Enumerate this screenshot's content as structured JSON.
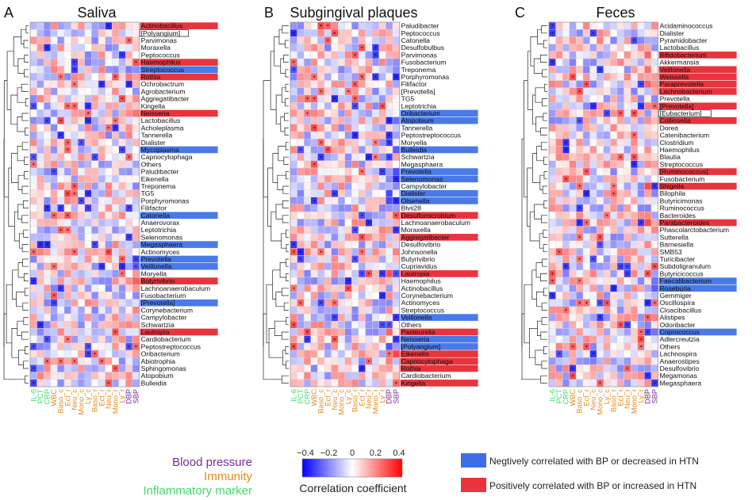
{
  "colors": {
    "negative": "#3b6ee6",
    "positive": "#e8343d",
    "neg_label_bg": "#4a7ae8",
    "pos_label_bg": "#e8343d",
    "bp_color": "#7a2a9a",
    "immunity_color": "#e08a1e",
    "inflam_color": "#3ed96b"
  },
  "columns": [
    {
      "label": "IL-6",
      "group": "inflam"
    },
    {
      "label": "PCT",
      "group": "inflam"
    },
    {
      "label": "CRP",
      "group": "inflam"
    },
    {
      "label": "WBC",
      "group": "immunity"
    },
    {
      "label": "Baso_c",
      "group": "immunity"
    },
    {
      "label": "Ect_r",
      "group": "immunity"
    },
    {
      "label": "Neu_c",
      "group": "immunity"
    },
    {
      "label": "Mono_c",
      "group": "immunity"
    },
    {
      "label": "Ly_c",
      "group": "immunity"
    },
    {
      "label": "Baso_r",
      "group": "immunity"
    },
    {
      "label": "Ect_r",
      "group": "immunity"
    },
    {
      "label": "Neu_r",
      "group": "immunity"
    },
    {
      "label": "Mono_r",
      "group": "immunity"
    },
    {
      "label": "Ly_r",
      "group": "immunity"
    },
    {
      "label": "DBP",
      "group": "bp"
    },
    {
      "label": "SBP",
      "group": "bp"
    }
  ],
  "chart_data": [
    {
      "type": "heatmap",
      "panel_letter": "A",
      "title": "Saliva",
      "rows": [
        {
          "name": "Actinobacillus",
          "mark": "pos"
        },
        {
          "name": "[Polyangium]",
          "mark": "box"
        },
        {
          "name": "Parvimonas",
          "mark": ""
        },
        {
          "name": "Moraxella",
          "mark": ""
        },
        {
          "name": "Peptococcus",
          "mark": ""
        },
        {
          "name": "Haemophilus",
          "mark": "pos"
        },
        {
          "name": "Streptococcus",
          "mark": "neg"
        },
        {
          "name": "Rothia",
          "mark": "pos"
        },
        {
          "name": "Ochrobactrum",
          "mark": ""
        },
        {
          "name": "Agrobacterium",
          "mark": ""
        },
        {
          "name": "Aggregatibacter",
          "mark": ""
        },
        {
          "name": "Kingella",
          "mark": ""
        },
        {
          "name": "Neisseria",
          "mark": "pos"
        },
        {
          "name": "Lactobacillus",
          "mark": ""
        },
        {
          "name": "Acholeplasma",
          "mark": ""
        },
        {
          "name": "Tannerella",
          "mark": ""
        },
        {
          "name": "Dialister",
          "mark": ""
        },
        {
          "name": "Mycoplasma",
          "mark": "neg"
        },
        {
          "name": "Capnocytophaga",
          "mark": ""
        },
        {
          "name": "Others",
          "mark": ""
        },
        {
          "name": "Paludibacter",
          "mark": ""
        },
        {
          "name": "Eikenella",
          "mark": ""
        },
        {
          "name": "Treponema",
          "mark": ""
        },
        {
          "name": "TG5",
          "mark": ""
        },
        {
          "name": "Porphyromonas",
          "mark": ""
        },
        {
          "name": "Filifactor",
          "mark": ""
        },
        {
          "name": "Catonella",
          "mark": "neg"
        },
        {
          "name": "Anaerovorax",
          "mark": ""
        },
        {
          "name": "Leptotrichia",
          "mark": ""
        },
        {
          "name": "Selenomonas",
          "mark": ""
        },
        {
          "name": "Megasphaera",
          "mark": "neg"
        },
        {
          "name": "Actinomyces",
          "mark": ""
        },
        {
          "name": "Prevotella",
          "mark": "neg"
        },
        {
          "name": "Veillonella",
          "mark": "neg"
        },
        {
          "name": "Moryella",
          "mark": ""
        },
        {
          "name": "Butyrivibrio",
          "mark": "pos"
        },
        {
          "name": "Lachnoanaerobaculum",
          "mark": ""
        },
        {
          "name": "Fusobacterium",
          "mark": ""
        },
        {
          "name": "[Prevotella]",
          "mark": "neg"
        },
        {
          "name": "Corynebacterium",
          "mark": ""
        },
        {
          "name": "Campylobacter",
          "mark": ""
        },
        {
          "name": "Schwartzia",
          "mark": ""
        },
        {
          "name": "Lautropia",
          "mark": "pos"
        },
        {
          "name": "Cardiobacterium",
          "mark": ""
        },
        {
          "name": "Peptostreptococcus",
          "mark": ""
        },
        {
          "name": "Oribacterium",
          "mark": ""
        },
        {
          "name": "Abiotrophia",
          "mark": ""
        },
        {
          "name": "Sphingomonas",
          "mark": ""
        },
        {
          "name": "Atopobium",
          "mark": ""
        },
        {
          "name": "Bulleidia",
          "mark": ""
        }
      ]
    },
    {
      "type": "heatmap",
      "panel_letter": "B",
      "title": "Subgingival plaques",
      "rows": [
        {
          "name": "Paludibacter",
          "mark": ""
        },
        {
          "name": "Peptococcus",
          "mark": ""
        },
        {
          "name": "Catonella",
          "mark": ""
        },
        {
          "name": "Desulfobulbus",
          "mark": ""
        },
        {
          "name": "Parvimonas",
          "mark": ""
        },
        {
          "name": "Fusobacterium",
          "mark": ""
        },
        {
          "name": "Treponema",
          "mark": ""
        },
        {
          "name": "Porphyromonas",
          "mark": ""
        },
        {
          "name": "Filifactor",
          "mark": ""
        },
        {
          "name": "[Prevotella]",
          "mark": ""
        },
        {
          "name": "TG5",
          "mark": ""
        },
        {
          "name": "Leptotrichia",
          "mark": ""
        },
        {
          "name": "Oribacterium",
          "mark": "neg"
        },
        {
          "name": "Atopobium",
          "mark": "neg"
        },
        {
          "name": "Tannerella",
          "mark": ""
        },
        {
          "name": "Peptostreptococcus",
          "mark": ""
        },
        {
          "name": "Moryella",
          "mark": ""
        },
        {
          "name": "Bulleidia",
          "mark": "neg"
        },
        {
          "name": "Schwartzia",
          "mark": ""
        },
        {
          "name": "Megasphaera",
          "mark": ""
        },
        {
          "name": "Prevotella",
          "mark": "neg"
        },
        {
          "name": "Selenomonas",
          "mark": "neg"
        },
        {
          "name": "Campylobacter",
          "mark": ""
        },
        {
          "name": "Dialister",
          "mark": "neg"
        },
        {
          "name": "Olsenella",
          "mark": "neg"
        },
        {
          "name": "Blvii28",
          "mark": ""
        },
        {
          "name": "Desulfomicrobium",
          "mark": "pos"
        },
        {
          "name": "Lachnoanaerobaculum",
          "mark": ""
        },
        {
          "name": "Moraxella",
          "mark": ""
        },
        {
          "name": "Aggregatibacter",
          "mark": "pos"
        },
        {
          "name": "Desulfovibrio",
          "mark": ""
        },
        {
          "name": "Johnsonella",
          "mark": ""
        },
        {
          "name": "Butyrivibrio",
          "mark": ""
        },
        {
          "name": "Cupriavidus",
          "mark": ""
        },
        {
          "name": "Lautropia",
          "mark": "pos"
        },
        {
          "name": "Haemophilus",
          "mark": ""
        },
        {
          "name": "Actinobacillus",
          "mark": ""
        },
        {
          "name": "Corynebacterium",
          "mark": ""
        },
        {
          "name": "Actinomyces",
          "mark": ""
        },
        {
          "name": "Streptococcus",
          "mark": ""
        },
        {
          "name": "Veillonella",
          "mark": "neg"
        },
        {
          "name": "Others",
          "mark": ""
        },
        {
          "name": "Pasteurella",
          "mark": "pos"
        },
        {
          "name": "Neisseria",
          "mark": "neg"
        },
        {
          "name": "[Polyangium]",
          "mark": "neg"
        },
        {
          "name": "Eikenella",
          "mark": "pos"
        },
        {
          "name": "Capnocytophaga",
          "mark": "pos"
        },
        {
          "name": "Rothia",
          "mark": "pos"
        },
        {
          "name": "Cardiobacterium",
          "mark": ""
        },
        {
          "name": "Kingella",
          "mark": "pos"
        }
      ]
    },
    {
      "type": "heatmap",
      "panel_letter": "C",
      "title": "Feces",
      "rows": [
        {
          "name": "Acidaminococcus",
          "mark": ""
        },
        {
          "name": "Dialister",
          "mark": ""
        },
        {
          "name": "Pyramidobacter",
          "mark": ""
        },
        {
          "name": "Lactobacillus",
          "mark": ""
        },
        {
          "name": "Bifidobacterium",
          "mark": "pos"
        },
        {
          "name": "Akkermansia",
          "mark": ""
        },
        {
          "name": "Veillonella",
          "mark": "pos"
        },
        {
          "name": "Weissella",
          "mark": "pos"
        },
        {
          "name": "Paraprevotella",
          "mark": "pos"
        },
        {
          "name": "Lachnobacterium",
          "mark": "pos"
        },
        {
          "name": "Prevotella",
          "mark": ""
        },
        {
          "name": "[Prevotella]",
          "mark": "pos"
        },
        {
          "name": "[Eubacterium]",
          "mark": "box"
        },
        {
          "name": "Collinsella",
          "mark": "pos"
        },
        {
          "name": "Dorea",
          "mark": ""
        },
        {
          "name": "Catenibacterium",
          "mark": ""
        },
        {
          "name": "Clostridium",
          "mark": ""
        },
        {
          "name": "Haemophilus",
          "mark": ""
        },
        {
          "name": "Blautia",
          "mark": ""
        },
        {
          "name": "Streptococcus",
          "mark": ""
        },
        {
          "name": "[Ruminococcus]",
          "mark": "pos"
        },
        {
          "name": "Fusobacterium",
          "mark": ""
        },
        {
          "name": "Shigella",
          "mark": "pos"
        },
        {
          "name": "Bilophila",
          "mark": ""
        },
        {
          "name": "Butyricimonas",
          "mark": ""
        },
        {
          "name": "Ruminococcus",
          "mark": ""
        },
        {
          "name": "Bacteroides",
          "mark": ""
        },
        {
          "name": "Parabacteroides",
          "mark": "pos"
        },
        {
          "name": "Phascolarctobacterium",
          "mark": ""
        },
        {
          "name": "Sutterella",
          "mark": ""
        },
        {
          "name": "Barnesiella",
          "mark": ""
        },
        {
          "name": "SMB53",
          "mark": ""
        },
        {
          "name": "Turicibacter",
          "mark": ""
        },
        {
          "name": "Subdoligranulum",
          "mark": ""
        },
        {
          "name": "Butyricicoccus",
          "mark": ""
        },
        {
          "name": "Faecalibacterium",
          "mark": "neg"
        },
        {
          "name": "Roseburia",
          "mark": "neg"
        },
        {
          "name": "Gemmiger",
          "mark": ""
        },
        {
          "name": "Oscillospira",
          "mark": ""
        },
        {
          "name": "Cloacibacillus",
          "mark": ""
        },
        {
          "name": "Alistipes",
          "mark": ""
        },
        {
          "name": "Odoribacter",
          "mark": ""
        },
        {
          "name": "Coprococcus",
          "mark": "neg"
        },
        {
          "name": "Adlercreutzia",
          "mark": ""
        },
        {
          "name": "Others",
          "mark": ""
        },
        {
          "name": "Lachnospira",
          "mark": ""
        },
        {
          "name": "Anaerostipes",
          "mark": ""
        },
        {
          "name": "Desulfovibrio",
          "mark": ""
        },
        {
          "name": "Megamonas",
          "mark": ""
        },
        {
          "name": "Megasphaera",
          "mark": ""
        }
      ]
    }
  ],
  "colorbar": {
    "title": "Correlation coefficient",
    "min": -0.4,
    "max": 0.4,
    "ticks": [
      "−0.4",
      "−0.2",
      "0",
      "0.2",
      "0.4"
    ]
  },
  "legend_groups": {
    "bp": "Blood pressure",
    "immunity": "Immunity",
    "inflam": "Inflammatory marker"
  },
  "legend_marks": {
    "neg": "Negtively correlated with BP or decreased in HTN",
    "pos": "Positively correlated with BP or increased in HTN"
  }
}
